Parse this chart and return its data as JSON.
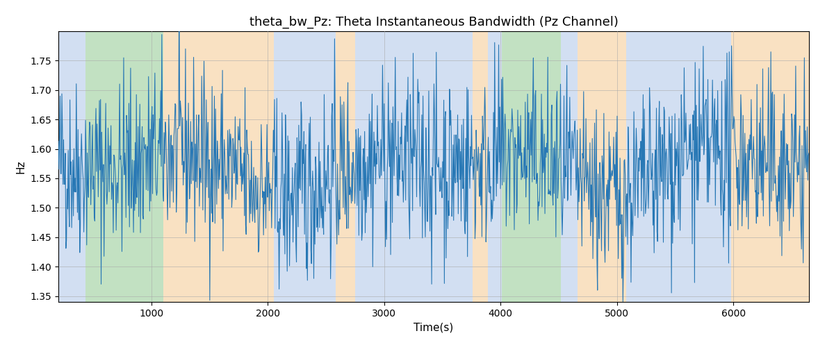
{
  "title": "theta_bw_Pz: Theta Instantaneous Bandwidth (Pz Channel)",
  "xlabel": "Time(s)",
  "ylabel": "Hz",
  "xlim": [
    200,
    6650
  ],
  "ylim": [
    1.34,
    1.8
  ],
  "yticks": [
    1.35,
    1.4,
    1.45,
    1.5,
    1.55,
    1.6,
    1.65,
    1.7,
    1.75
  ],
  "xticks": [
    1000,
    2000,
    3000,
    4000,
    5000,
    6000
  ],
  "line_color": "#2878b5",
  "background_regions": [
    {
      "xmin": 200,
      "xmax": 430,
      "color": "#aec6e8",
      "alpha": 0.55
    },
    {
      "xmin": 430,
      "xmax": 1100,
      "color": "#90c990",
      "alpha": 0.55
    },
    {
      "xmin": 1100,
      "xmax": 2050,
      "color": "#f5c990",
      "alpha": 0.55
    },
    {
      "xmin": 2050,
      "xmax": 2580,
      "color": "#aec6e8",
      "alpha": 0.55
    },
    {
      "xmin": 2580,
      "xmax": 2750,
      "color": "#f5c990",
      "alpha": 0.55
    },
    {
      "xmin": 2750,
      "xmax": 3760,
      "color": "#aec6e8",
      "alpha": 0.55
    },
    {
      "xmin": 3760,
      "xmax": 3890,
      "color": "#f5c990",
      "alpha": 0.55
    },
    {
      "xmin": 3890,
      "xmax": 4010,
      "color": "#aec6e8",
      "alpha": 0.55
    },
    {
      "xmin": 4010,
      "xmax": 4520,
      "color": "#90c990",
      "alpha": 0.55
    },
    {
      "xmin": 4520,
      "xmax": 4660,
      "color": "#aec6e8",
      "alpha": 0.55
    },
    {
      "xmin": 4660,
      "xmax": 5080,
      "color": "#f5c990",
      "alpha": 0.55
    },
    {
      "xmin": 5080,
      "xmax": 5980,
      "color": "#aec6e8",
      "alpha": 0.55
    },
    {
      "xmin": 5980,
      "xmax": 6650,
      "color": "#f5c990",
      "alpha": 0.55
    }
  ],
  "seed": 42,
  "n_points": 1300,
  "x_start": 200,
  "x_end": 6650,
  "signal_mean": 1.565,
  "signal_std": 0.075,
  "figsize": [
    12.0,
    5.0
  ],
  "dpi": 100,
  "title_fontsize": 13,
  "label_fontsize": 11
}
